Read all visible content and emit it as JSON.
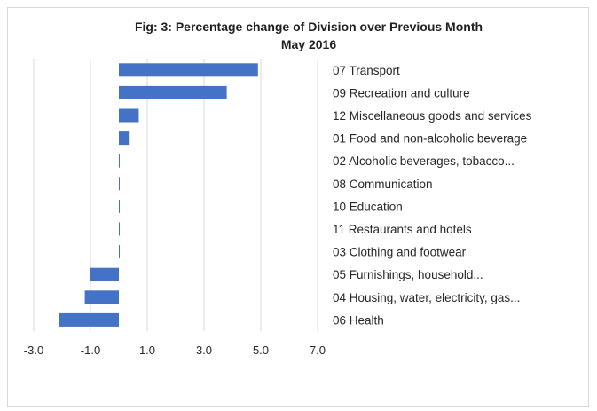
{
  "chart_data": {
    "type": "bar",
    "orientation": "horizontal",
    "title": "Fig: 3: Percentage change of Division over Previous Month",
    "subtitle": "May 2016",
    "xlabel": "",
    "ylabel": "",
    "xlim": [
      -3.0,
      7.0
    ],
    "xticks": [
      "-3.0",
      "-1.0",
      "1.0",
      "3.0",
      "5.0",
      "7.0"
    ],
    "grid": true,
    "legend": "none",
    "bar_color": "#4472c4",
    "categories": [
      "07 Transport",
      "09 Recreation and culture",
      "12 Miscellaneous goods and services",
      "01 Food and non-alcoholic beverage",
      "02 Alcoholic beverages, tobacco...",
      "08 Communication",
      "10 Education",
      "11 Restaurants and hotels",
      "03 Clothing and footwear",
      "05 Furnishings, household...",
      "04 Housing, water, electricity, gas...",
      "06 Health"
    ],
    "values": [
      4.9,
      3.8,
      0.7,
      0.35,
      0.02,
      0.0,
      0.0,
      0.0,
      0.0,
      -1.0,
      -1.2,
      -2.1
    ]
  }
}
